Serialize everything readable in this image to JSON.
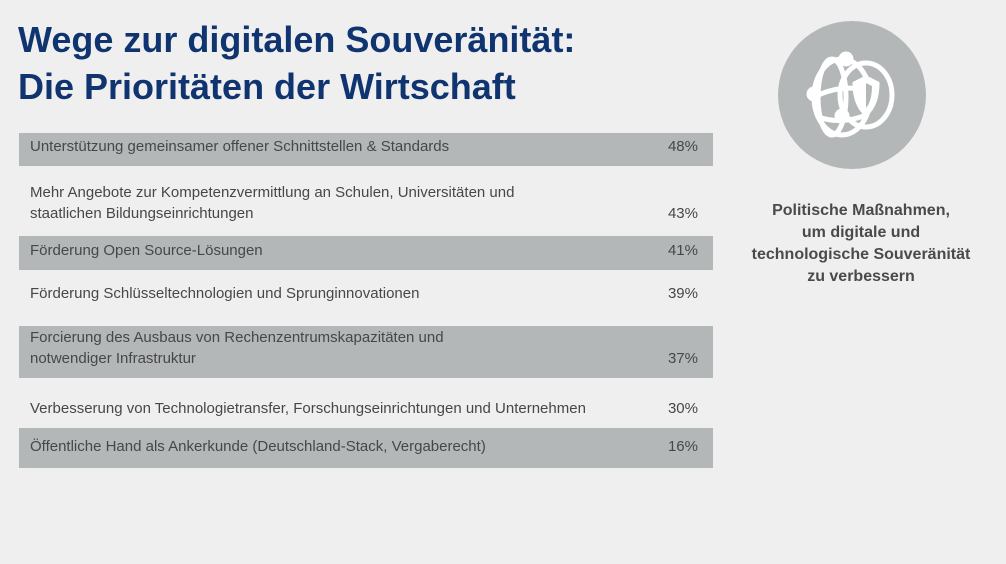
{
  "title": {
    "line1": "Wege zur digitalen Souveränität:",
    "line2": "Die Prioritäten der Wirtschaft"
  },
  "rows": [
    {
      "label": "Unterstützung gemeinsamer offener Schnittstellen & Standards",
      "value": "48%"
    },
    {
      "label": "Mehr Angebote zur Kompetenzvermittlung an Schulen, Universitäten und staatlichen Bildungseinrichtungen",
      "value": "43%"
    },
    {
      "label": "Förderung Open Source-Lösungen",
      "value": "41%"
    },
    {
      "label": "Förderung Schlüsseltechnologien und Sprunginnovationen",
      "value": "39%"
    },
    {
      "label": "Forcierung des Ausbaus von Rechenzentrumskapazitäten und notwendiger Infrastruktur",
      "value": "37%"
    },
    {
      "label": "Verbesserung von Technologietransfer, Forschungseinrichtungen und Unternehmen",
      "value": "30%"
    },
    {
      "label": "Öffentliche Hand als Ankerkunde (Deutschland-Stack, Vergaberecht)",
      "value": "16%"
    }
  ],
  "sidebar": {
    "icon": "globe-shield-icon",
    "caption_lines": [
      "Politische Maßnahmen,",
      "um digitale und",
      "technologische Souveränität",
      "zu verbessern"
    ]
  },
  "colors": {
    "title": "#0f3470",
    "row_gray": "#b4b7b8",
    "background": "#efefef"
  }
}
